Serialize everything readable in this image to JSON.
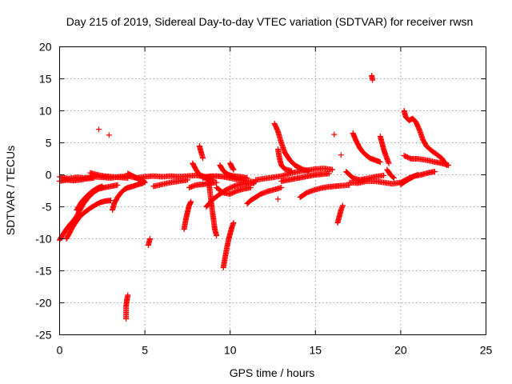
{
  "chart_data": {
    "type": "scatter",
    "title": "Day 215 of 2019, Sidereal Day-to-day VTEC variation (SDTVAR) for receiver rwsn",
    "xlabel": "GPS time / hours",
    "ylabel": "SDTVAR / TECUs",
    "xlim": [
      0,
      25
    ],
    "ylim": [
      -25,
      20
    ],
    "xticks": [
      0,
      5,
      10,
      15,
      20,
      25
    ],
    "yticks": [
      -25,
      -20,
      -15,
      -10,
      -5,
      0,
      5,
      10,
      15,
      20
    ],
    "grid": true,
    "marker": "+",
    "color": "#ff0000",
    "segments": [
      [
        [
          0.0,
          -0.3
        ],
        [
          0.5,
          -0.6
        ],
        [
          1.0,
          -0.4
        ],
        [
          1.5,
          -0.5
        ],
        [
          2.0,
          -0.3
        ],
        [
          2.5,
          -0.4
        ],
        [
          3.0,
          -0.5
        ],
        [
          3.5,
          -0.3
        ],
        [
          4.0,
          -0.2
        ],
        [
          4.5,
          -0.5
        ],
        [
          5.0,
          -0.3
        ],
        [
          5.5,
          -0.2
        ],
        [
          6.0,
          -0.3
        ],
        [
          6.5,
          -0.2
        ],
        [
          7.0,
          -0.3
        ],
        [
          7.5,
          -0.2
        ],
        [
          8.0,
          -0.1
        ],
        [
          8.5,
          -0.3
        ],
        [
          9.0,
          -0.2
        ]
      ],
      [
        [
          0.0,
          -1.0
        ],
        [
          0.4,
          -0.8
        ],
        [
          0.8,
          -0.9
        ],
        [
          1.2,
          -0.8
        ],
        [
          1.6,
          -0.6
        ],
        [
          2.0,
          -0.5
        ]
      ],
      [
        [
          1.8,
          0.3
        ],
        [
          2.2,
          0.0
        ],
        [
          2.6,
          -0.2
        ],
        [
          3.0,
          -0.3
        ],
        [
          3.5,
          -0.4
        ],
        [
          4.0,
          -0.5
        ]
      ],
      [
        [
          4.0,
          0.2
        ],
        [
          4.3,
          -0.2
        ],
        [
          4.6,
          -0.6
        ],
        [
          4.9,
          -0.9
        ],
        [
          5.0,
          -1.2
        ]
      ],
      [
        [
          0.0,
          -10.2
        ],
        [
          0.2,
          -9.3
        ],
        [
          0.4,
          -8.5
        ],
        [
          0.6,
          -7.8
        ],
        [
          0.8,
          -7.2
        ],
        [
          1.0,
          -6.5
        ],
        [
          1.2,
          -5.5
        ],
        [
          1.4,
          -4.5
        ],
        [
          1.7,
          -3.5
        ],
        [
          2.0,
          -2.7
        ],
        [
          2.3,
          -2.2
        ],
        [
          2.6,
          -2.0
        ],
        [
          3.0,
          -1.8
        ],
        [
          3.4,
          -1.6
        ]
      ],
      [
        [
          0.4,
          -10.0
        ],
        [
          0.6,
          -9.0
        ],
        [
          0.8,
          -8.0
        ],
        [
          1.0,
          -7.2
        ],
        [
          1.2,
          -6.5
        ],
        [
          1.5,
          -5.8
        ],
        [
          1.8,
          -5.2
        ],
        [
          2.1,
          -4.7
        ],
        [
          2.4,
          -4.3
        ],
        [
          2.7,
          -4.1
        ],
        [
          3.0,
          -4.0
        ]
      ],
      [
        [
          1.0,
          -5.5
        ],
        [
          1.3,
          -4.2
        ],
        [
          1.6,
          -3.3
        ],
        [
          1.9,
          -2.6
        ],
        [
          2.2,
          -2.1
        ],
        [
          2.5,
          -1.8
        ]
      ],
      [
        [
          3.1,
          -5.5
        ],
        [
          3.2,
          -4.5
        ],
        [
          3.4,
          -3.5
        ],
        [
          3.6,
          -2.8
        ],
        [
          3.8,
          -2.3
        ],
        [
          4.0,
          -2.0
        ],
        [
          4.3,
          -1.8
        ],
        [
          4.6,
          -1.5
        ],
        [
          4.9,
          -1.3
        ]
      ],
      [
        [
          3.9,
          -22.5
        ],
        [
          3.9,
          -21.5
        ],
        [
          3.9,
          -20.5
        ],
        [
          3.95,
          -19.5
        ],
        [
          4.0,
          -18.8
        ]
      ],
      [
        [
          5.2,
          -11.0
        ],
        [
          5.25,
          -10.5
        ],
        [
          5.3,
          -10.0
        ]
      ],
      [
        [
          2.3,
          7.1
        ]
      ],
      [
        [
          2.9,
          6.2
        ]
      ],
      [
        [
          5.5,
          -1.8
        ],
        [
          6.0,
          -1.5
        ],
        [
          6.5,
          -1.2
        ],
        [
          7.0,
          -1.0
        ],
        [
          7.5,
          -0.8
        ]
      ],
      [
        [
          7.3,
          -8.5
        ],
        [
          7.4,
          -7.0
        ],
        [
          7.5,
          -5.8
        ],
        [
          7.6,
          -4.8
        ],
        [
          7.7,
          -4.2
        ]
      ],
      [
        [
          7.6,
          -2.0
        ],
        [
          8.0,
          -1.6
        ],
        [
          8.4,
          -1.5
        ],
        [
          8.8,
          -1.3
        ],
        [
          9.2,
          -1.2
        ]
      ],
      [
        [
          7.8,
          1.8
        ],
        [
          8.0,
          0.8
        ],
        [
          8.2,
          0.0
        ],
        [
          8.4,
          -0.2
        ],
        [
          8.6,
          -0.5
        ],
        [
          9.0,
          -0.8
        ]
      ],
      [
        [
          8.2,
          4.5
        ],
        [
          8.3,
          3.5
        ],
        [
          8.4,
          2.6
        ]
      ],
      [
        [
          8.4,
          -0.5
        ],
        [
          8.8,
          -0.3
        ],
        [
          9.2,
          -0.2
        ],
        [
          9.6,
          -0.3
        ],
        [
          10.0,
          -0.5
        ],
        [
          10.5,
          -0.8
        ],
        [
          11.0,
          -1.0
        ],
        [
          11.5,
          -1.1
        ]
      ],
      [
        [
          8.6,
          -5.0
        ],
        [
          9.0,
          -3.8
        ],
        [
          9.4,
          -3.0
        ],
        [
          9.8,
          -2.3
        ],
        [
          10.2,
          -1.8
        ],
        [
          10.6,
          -1.5
        ],
        [
          11.0,
          -1.4
        ],
        [
          11.4,
          -1.3
        ]
      ],
      [
        [
          8.7,
          -0.5
        ],
        [
          8.8,
          -2.2
        ],
        [
          8.9,
          -4.5
        ],
        [
          9.0,
          -6.5
        ],
        [
          9.1,
          -8.5
        ],
        [
          9.2,
          -9.5
        ]
      ],
      [
        [
          9.2,
          -2.0
        ],
        [
          9.6,
          -2.8
        ],
        [
          10.0,
          -3.0
        ],
        [
          10.4,
          -2.5
        ],
        [
          10.8,
          -2.2
        ],
        [
          11.2,
          -2.0
        ]
      ],
      [
        [
          9.4,
          1.5
        ],
        [
          9.6,
          0.6
        ],
        [
          9.9,
          0.0
        ],
        [
          10.2,
          -0.2
        ],
        [
          10.6,
          -0.3
        ],
        [
          11.0,
          -0.5
        ]
      ],
      [
        [
          9.6,
          -14.5
        ],
        [
          9.7,
          -13.0
        ],
        [
          9.8,
          -11.5
        ],
        [
          9.9,
          -10.2
        ],
        [
          10.0,
          -9.2
        ],
        [
          10.1,
          -8.2
        ],
        [
          10.2,
          -7.5
        ]
      ],
      [
        [
          10.0,
          1.8
        ],
        [
          10.1,
          1.2
        ],
        [
          10.2,
          0.8
        ]
      ],
      [
        [
          11.0,
          -4.5
        ],
        [
          11.2,
          -4.0
        ],
        [
          11.5,
          -3.5
        ],
        [
          11.8,
          -3.0
        ],
        [
          12.2,
          -2.6
        ],
        [
          12.6,
          -2.3
        ],
        [
          13.0,
          -2.0
        ]
      ],
      [
        [
          11.5,
          -0.8
        ],
        [
          12.0,
          -0.6
        ],
        [
          12.5,
          -0.4
        ],
        [
          13.0,
          -0.2
        ],
        [
          13.5,
          0.2
        ],
        [
          14.0,
          0.5
        ],
        [
          14.5,
          0.7
        ],
        [
          15.0,
          0.9
        ],
        [
          15.5,
          1.0
        ],
        [
          16.0,
          0.8
        ]
      ],
      [
        [
          12.6,
          8.0
        ],
        [
          12.8,
          6.8
        ],
        [
          13.0,
          5.0
        ],
        [
          13.2,
          3.5
        ],
        [
          13.5,
          2.3
        ],
        [
          13.8,
          1.5
        ],
        [
          14.2,
          0.9
        ],
        [
          14.6,
          0.6
        ]
      ],
      [
        [
          12.8,
          4.0
        ],
        [
          12.9,
          2.5
        ],
        [
          13.0,
          1.5
        ],
        [
          13.2,
          0.9
        ],
        [
          13.6,
          0.6
        ]
      ],
      [
        [
          12.8,
          -3.8
        ]
      ],
      [
        [
          13.0,
          -1.0
        ],
        [
          13.4,
          -0.8
        ],
        [
          13.8,
          -0.6
        ],
        [
          14.2,
          -0.4
        ],
        [
          14.6,
          -0.2
        ],
        [
          15.0,
          0.0
        ],
        [
          15.4,
          0.1
        ],
        [
          15.8,
          0.2
        ]
      ],
      [
        [
          14.1,
          -3.5
        ],
        [
          14.5,
          -2.8
        ],
        [
          14.9,
          -2.4
        ],
        [
          15.3,
          -2.1
        ],
        [
          15.7,
          -1.9
        ],
        [
          16.1,
          -1.8
        ],
        [
          16.5,
          -1.7
        ],
        [
          17.0,
          -1.6
        ]
      ],
      [
        [
          16.3,
          -7.5
        ],
        [
          16.4,
          -6.5
        ],
        [
          16.5,
          -5.5
        ],
        [
          16.6,
          -4.8
        ]
      ],
      [
        [
          16.1,
          6.3
        ]
      ],
      [
        [
          16.5,
          3.1
        ]
      ],
      [
        [
          16.8,
          0.5
        ],
        [
          17.2,
          -0.5
        ],
        [
          17.6,
          -0.8
        ],
        [
          18.0,
          -0.6
        ],
        [
          18.5,
          -0.3
        ],
        [
          19.0,
          -0.1
        ]
      ],
      [
        [
          17.2,
          6.5
        ],
        [
          17.4,
          5.2
        ],
        [
          17.6,
          4.2
        ],
        [
          17.8,
          3.5
        ],
        [
          18.0,
          3.0
        ],
        [
          18.2,
          2.6
        ],
        [
          18.5,
          2.3
        ],
        [
          18.8,
          2.0
        ]
      ],
      [
        [
          18.3,
          15.5
        ],
        [
          18.35,
          14.8
        ]
      ],
      [
        [
          18.8,
          6.0
        ],
        [
          18.9,
          5.0
        ],
        [
          19.0,
          4.0
        ],
        [
          19.1,
          3.2
        ],
        [
          19.2,
          2.5
        ],
        [
          19.3,
          1.8
        ]
      ],
      [
        [
          19.2,
          0.8
        ],
        [
          19.4,
          0.0
        ],
        [
          19.6,
          -0.5
        ]
      ],
      [
        [
          17.0,
          -1.2
        ],
        [
          17.5,
          -1.3
        ],
        [
          18.0,
          -1.0
        ],
        [
          18.5,
          -1.0
        ],
        [
          19.0,
          -1.2
        ],
        [
          19.5,
          -1.4
        ],
        [
          20.0,
          -1.2
        ],
        [
          20.5,
          -0.5
        ],
        [
          21.0,
          0.0
        ]
      ],
      [
        [
          20.2,
          10.0
        ],
        [
          20.3,
          9.0
        ],
        [
          20.5,
          8.5
        ],
        [
          20.7,
          8.8
        ],
        [
          20.9,
          8.2
        ],
        [
          21.1,
          7.0
        ],
        [
          21.3,
          5.5
        ],
        [
          21.5,
          4.5
        ],
        [
          21.8,
          3.8
        ],
        [
          22.1,
          3.2
        ],
        [
          22.4,
          2.6
        ],
        [
          22.7,
          1.5
        ]
      ],
      [
        [
          20.2,
          3.0
        ],
        [
          20.6,
          2.5
        ],
        [
          21.0,
          2.5
        ],
        [
          21.5,
          2.3
        ],
        [
          22.0,
          2.0
        ],
        [
          22.4,
          1.8
        ],
        [
          22.8,
          1.5
        ]
      ],
      [
        [
          20.0,
          -1.5
        ],
        [
          20.4,
          -0.8
        ],
        [
          20.8,
          -0.2
        ],
        [
          21.2,
          0.0
        ],
        [
          21.6,
          0.3
        ],
        [
          22.0,
          0.5
        ]
      ]
    ]
  }
}
